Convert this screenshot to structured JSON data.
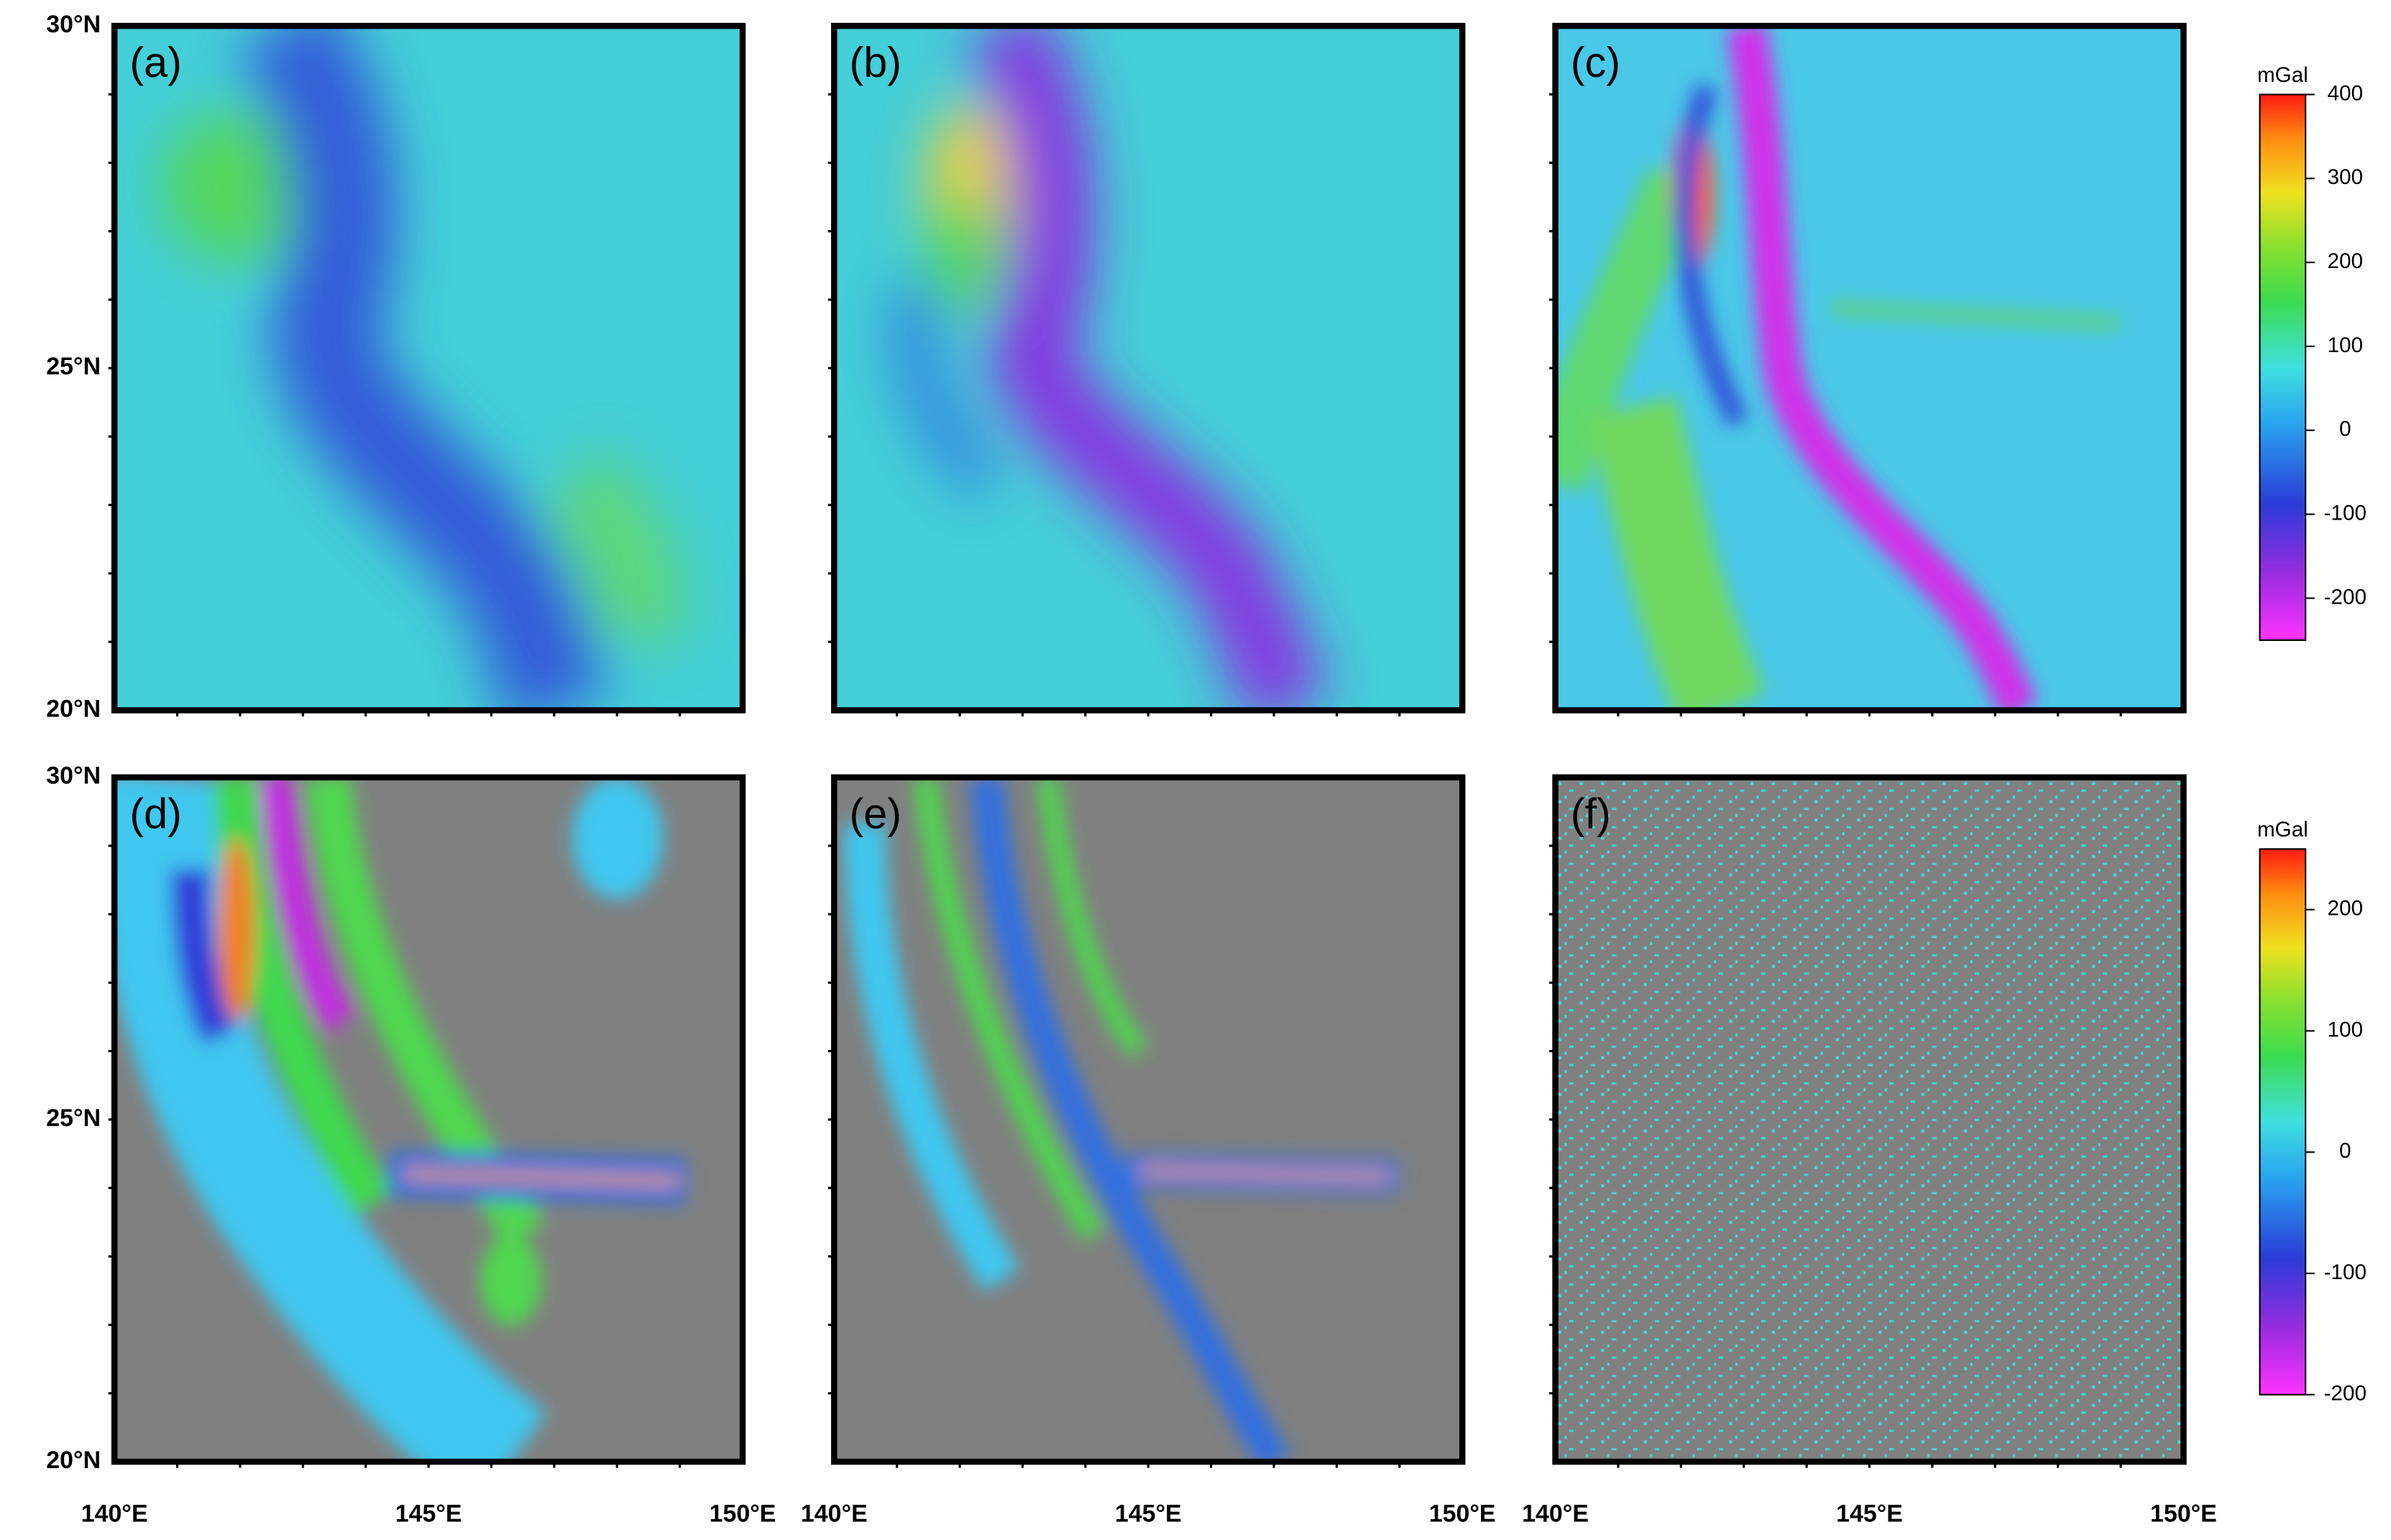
{
  "panels": [
    {
      "label": "(a)"
    },
    {
      "label": "(b)"
    },
    {
      "label": "(c)"
    },
    {
      "label": "(d)"
    },
    {
      "label": "(e)"
    },
    {
      "label": "(f)"
    }
  ],
  "lat_labels": [
    "30°N",
    "25°N",
    "20°N"
  ],
  "lon_labels": [
    "140°E",
    "145°E",
    "150°E"
  ],
  "colorbars": [
    {
      "unit": "mGal",
      "range": [
        -250,
        400
      ],
      "ticks": [
        400,
        300,
        200,
        100,
        0,
        -100,
        -200
      ]
    },
    {
      "unit": "mGal",
      "range": [
        -200,
        250
      ],
      "ticks": [
        200,
        100,
        0,
        -100,
        -200
      ]
    }
  ]
}
